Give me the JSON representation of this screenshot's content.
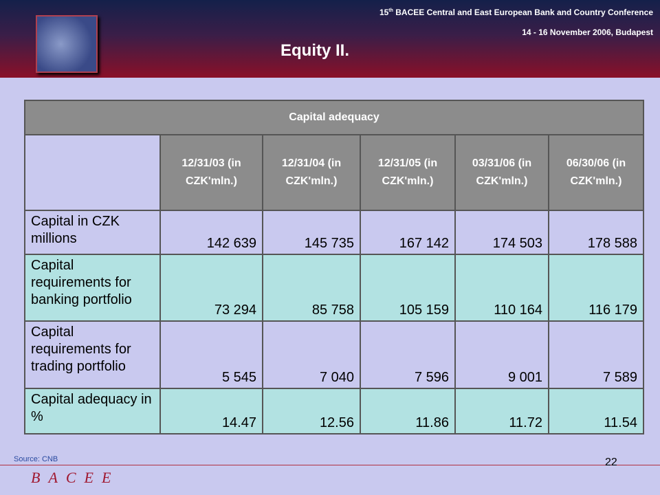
{
  "header": {
    "conference_number": "15",
    "conference_suffix": "th",
    "conference_name": "BACEE Central and East European Bank and Country Conference",
    "date": "14 - 16 November 2006, Budapest",
    "title": "Equity II."
  },
  "table": {
    "caption": "Capital adequacy",
    "columns": [
      "12/31/03 (in CZK'mln.)",
      "12/31/04 (in CZK'mln.)",
      "12/31/05 (in CZK'mln.)",
      "03/31/06 (in CZK'mln.)",
      "06/30/06 (in CZK'mln.)"
    ],
    "rows": [
      [
        "Capital in CZK millions",
        "142 639",
        "145 735",
        "167 142",
        "174 503",
        "178 588"
      ],
      [
        "Capital requirements for banking portfolio",
        "73 294",
        "85 758",
        "105 159",
        "110 164",
        "116 179"
      ],
      [
        "Capital requirements for trading portfolio",
        "5 545",
        "7 040",
        "7 596",
        "9 001",
        "7 589"
      ],
      [
        "Capital adequacy in %",
        "14.47",
        "12.56",
        "11.86",
        "11.72",
        "11.54"
      ]
    ]
  },
  "footer": {
    "source": "Source: CNB",
    "page": "22",
    "logo": "BACEE"
  }
}
